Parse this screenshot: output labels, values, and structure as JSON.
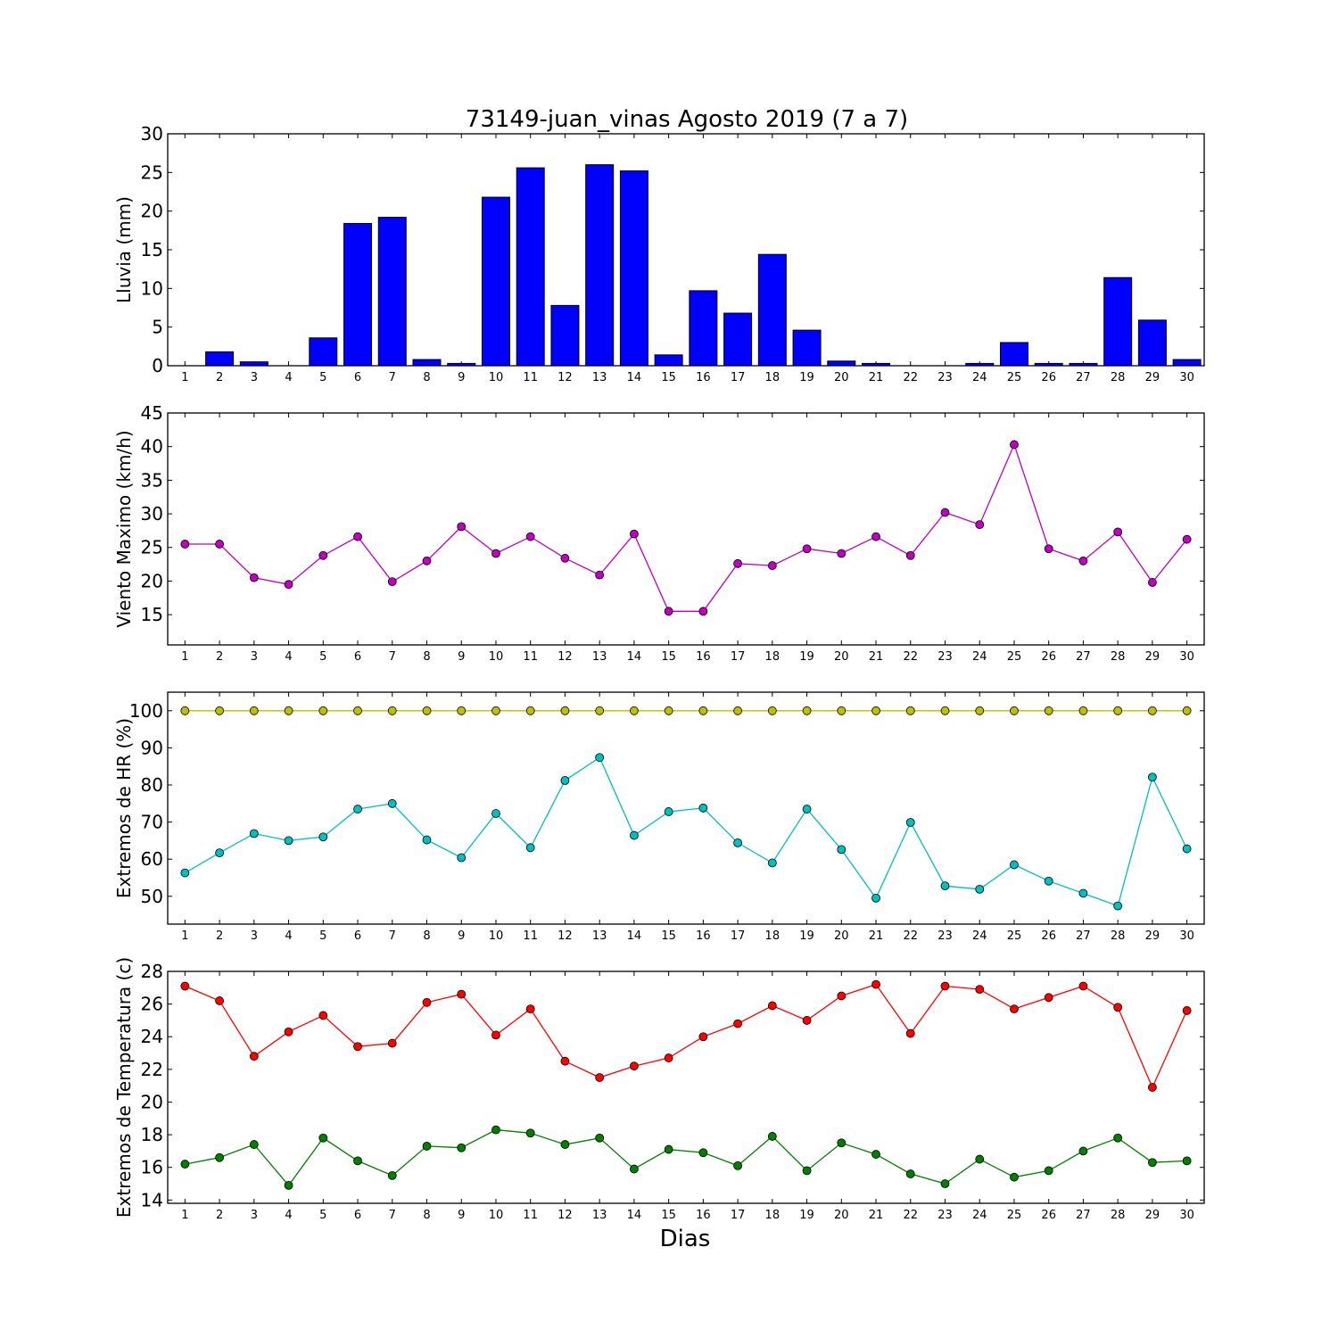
{
  "chart_data": {
    "title": "73149-juan_vinas Agosto 2019  (7 a 7)",
    "xlabel": "Dias",
    "days": [
      1,
      2,
      3,
      4,
      5,
      6,
      7,
      8,
      9,
      10,
      11,
      12,
      13,
      14,
      15,
      16,
      17,
      18,
      19,
      20,
      21,
      22,
      23,
      24,
      25,
      26,
      27,
      28,
      29,
      30
    ],
    "panels": [
      {
        "type": "bar",
        "ylabel": "Lluvia (mm)",
        "ylim": [
          0,
          30
        ],
        "yticks": [
          0,
          5,
          10,
          15,
          20,
          25,
          30
        ],
        "series": [
          {
            "color": "#0000ff",
            "values": [
              0,
              1.8,
              0.5,
              0,
              3.6,
              18.4,
              19.2,
              0.8,
              0.3,
              21.8,
              25.6,
              7.8,
              26,
              25.2,
              1.4,
              9.7,
              6.8,
              14.4,
              4.6,
              0.6,
              0.3,
              0,
              0,
              0.3,
              3,
              0.3,
              0.3,
              11.4,
              5.9,
              0.8
            ]
          }
        ]
      },
      {
        "type": "line",
        "ylabel": "Viento Maximo (km/h)",
        "ylim": [
          10.5,
          45
        ],
        "yticks": [
          15,
          20,
          25,
          30,
          35,
          40,
          45
        ],
        "series": [
          {
            "color": "#bf00bf",
            "values": [
              25.5,
              25.5,
              20.5,
              19.5,
              23.8,
              26.6,
              19.9,
              23.0,
              28.1,
              24.1,
              26.6,
              23.4,
              20.9,
              27.0,
              15.5,
              15.5,
              22.6,
              22.3,
              24.8,
              24.1,
              26.6,
              23.8,
              30.2,
              28.4,
              40.3,
              24.8,
              23.0,
              27.3,
              19.8,
              26.2
            ]
          }
        ]
      },
      {
        "type": "line",
        "ylabel": "Extremos de HR (%)",
        "ylim": [
          42.5,
          105
        ],
        "yticks": [
          50,
          60,
          70,
          80,
          90,
          100
        ],
        "series": [
          {
            "color": "#bfbf00",
            "values": [
              100,
              100,
              100,
              100,
              100,
              100,
              100,
              100,
              100,
              100,
              100,
              100,
              100,
              100,
              100,
              100,
              100,
              100,
              100,
              100,
              100,
              100,
              100,
              100,
              100,
              100,
              100,
              100,
              100,
              100
            ]
          },
          {
            "color": "#00bfbf",
            "values": [
              56.3,
              61.7,
              66.9,
              65.0,
              66.0,
              73.5,
              75.0,
              65.2,
              60.4,
              72.3,
              63.1,
              81.2,
              87.4,
              66.4,
              72.8,
              73.8,
              64.4,
              59.0,
              73.5,
              62.6,
              49.5,
              69.9,
              52.8,
              51.9,
              58.5,
              54.1,
              50.8,
              47.4,
              82.1,
              62.8
            ]
          }
        ]
      },
      {
        "type": "line",
        "ylabel": "Extremos de Temperatura (c)",
        "ylim": [
          13.8,
          28
        ],
        "yticks": [
          14,
          16,
          18,
          20,
          22,
          24,
          26,
          28
        ],
        "series": [
          {
            "color": "#ff0000",
            "values": [
              27.1,
              26.2,
              22.8,
              24.3,
              25.3,
              23.4,
              23.6,
              26.1,
              26.6,
              24.1,
              25.7,
              22.5,
              21.5,
              22.2,
              22.7,
              24.0,
              24.8,
              25.9,
              25.0,
              26.5,
              27.2,
              24.2,
              27.1,
              26.9,
              25.7,
              26.4,
              27.1,
              25.8,
              20.9,
              25.6
            ]
          },
          {
            "color": "#007f00",
            "values": [
              16.2,
              16.6,
              17.4,
              14.9,
              17.8,
              16.4,
              15.5,
              17.3,
              17.2,
              18.3,
              18.1,
              17.4,
              17.8,
              15.9,
              17.1,
              16.9,
              16.1,
              17.9,
              15.8,
              17.5,
              16.8,
              15.6,
              15.0,
              16.5,
              15.4,
              15.8,
              17.0,
              17.8,
              16.3,
              16.4
            ]
          }
        ]
      }
    ]
  }
}
